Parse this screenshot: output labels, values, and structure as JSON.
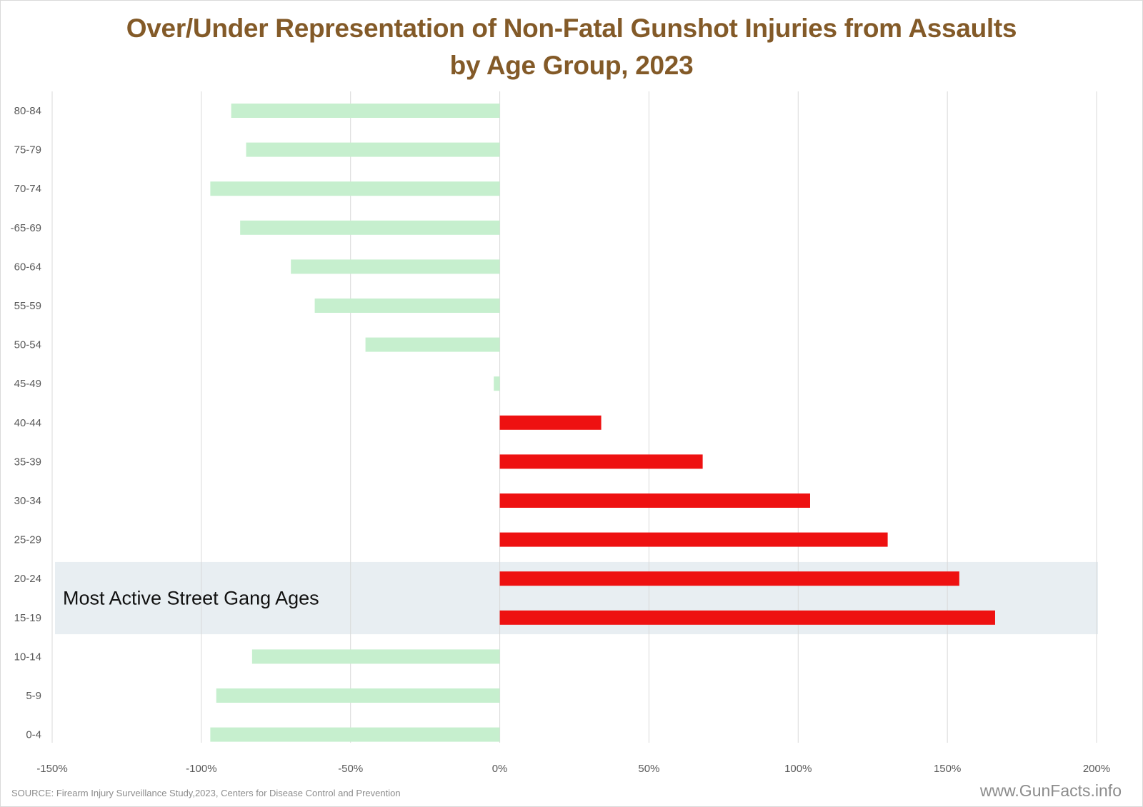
{
  "title": {
    "line1": "Over/Under Representation of Non-Fatal Gunshot Injuries from Assaults",
    "line2": "by Age Group, 2023"
  },
  "source": "SOURCE: Firearm Injury Surveillance Study,2023, Centers for Disease Control and Prevention",
  "brand": "www.GunFacts.info",
  "colors": {
    "negative": "#c6efce",
    "positive": "#ee1111",
    "highlight": "#e8eef2",
    "grid": "#d9d9d9",
    "title": "#835a28"
  },
  "chart_data": {
    "type": "bar",
    "orientation": "horizontal",
    "title": "Over/Under Representation of Non-Fatal Gunshot Injuries from Assaults by Age Group, 2023",
    "categories": [
      "80-84",
      "75-79",
      "70-74",
      "-65-69",
      "60-64",
      "55-59",
      "50-54",
      "45-49",
      "40-44",
      "35-39",
      "30-34",
      "25-29",
      "20-24",
      "15-19",
      "10-14",
      "5-9",
      "0-4"
    ],
    "values": [
      -90,
      -85,
      -97,
      -87,
      -70,
      -62,
      -45,
      -2,
      34,
      68,
      104,
      130,
      154,
      166,
      -83,
      -95,
      -97
    ],
    "xlim": [
      -150,
      200
    ],
    "xticks": [
      "-150%",
      "-100%",
      "-50%",
      "0%",
      "50%",
      "100%",
      "150%",
      "200%"
    ],
    "xtick_values": [
      -150,
      -100,
      -50,
      0,
      50,
      100,
      150,
      200
    ],
    "grid": true,
    "annotation": {
      "text": "Most Active Street Gang Ages",
      "categories": [
        "20-24",
        "15-19"
      ]
    }
  }
}
